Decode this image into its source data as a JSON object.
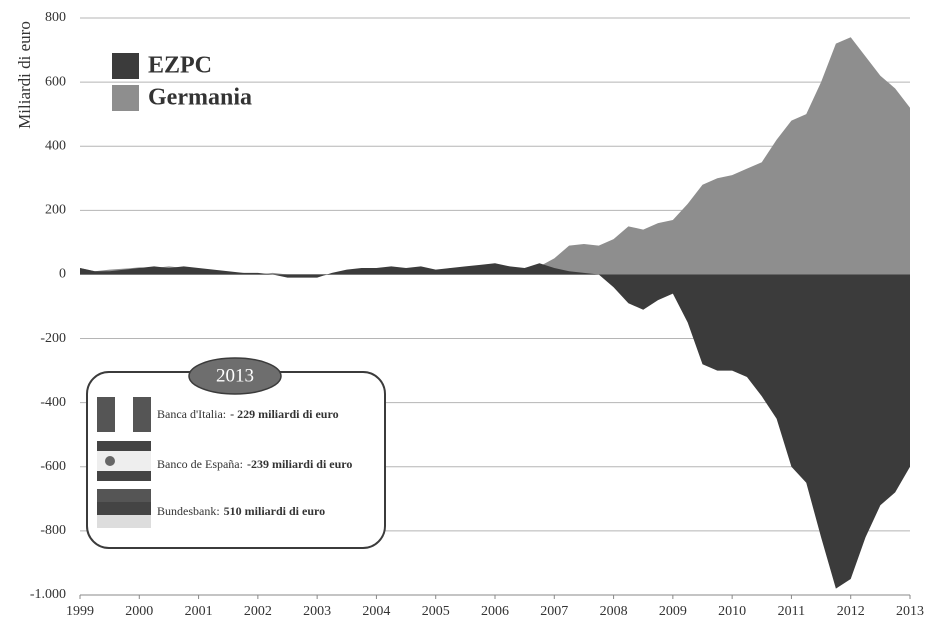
{
  "chart_data": {
    "type": "area",
    "y_label": "Miliardi di euro",
    "x": [
      1999,
      1999.25,
      1999.5,
      1999.75,
      2000,
      2000.25,
      2000.5,
      2000.75,
      2001,
      2001.25,
      2001.5,
      2001.75,
      2002,
      2002.25,
      2002.5,
      2002.75,
      2003,
      2003.25,
      2003.5,
      2003.75,
      2004,
      2004.25,
      2004.5,
      2004.75,
      2005,
      2005.25,
      2005.5,
      2005.75,
      2006,
      2006.25,
      2006.5,
      2006.75,
      2007,
      2007.25,
      2007.5,
      2007.75,
      2008,
      2008.25,
      2008.5,
      2008.75,
      2009,
      2009.25,
      2009.5,
      2009.75,
      2010,
      2010.25,
      2010.5,
      2010.75,
      2011,
      2011.25,
      2011.5,
      2011.75,
      2012,
      2012.25,
      2012.5,
      2012.75,
      2013
    ],
    "series": [
      {
        "name": "Germania",
        "color": "#8e8e8e",
        "values": [
          20,
          10,
          15,
          18,
          22,
          20,
          25,
          20,
          15,
          10,
          5,
          5,
          0,
          5,
          0,
          -5,
          -5,
          0,
          5,
          10,
          15,
          20,
          15,
          20,
          10,
          20,
          15,
          20,
          25,
          20,
          20,
          25,
          50,
          90,
          95,
          90,
          110,
          150,
          140,
          160,
          170,
          220,
          280,
          300,
          310,
          330,
          350,
          420,
          480,
          500,
          600,
          720,
          740,
          680,
          620,
          580,
          520
        ]
      },
      {
        "name": "EZPC",
        "color": "#3b3b3b",
        "values": [
          20,
          10,
          10,
          15,
          20,
          25,
          20,
          25,
          20,
          15,
          10,
          5,
          5,
          0,
          -10,
          -10,
          -10,
          5,
          15,
          20,
          20,
          25,
          20,
          25,
          15,
          20,
          25,
          30,
          35,
          25,
          20,
          35,
          20,
          10,
          5,
          0,
          -40,
          -90,
          -110,
          -80,
          -60,
          -150,
          -280,
          -300,
          -300,
          -320,
          -380,
          -450,
          -600,
          -650,
          -820,
          -980,
          -950,
          -820,
          -720,
          -680,
          -600
        ]
      }
    ],
    "xlim": [
      1999,
      2013
    ],
    "xticks": [
      1999,
      2000,
      2001,
      2002,
      2003,
      2004,
      2005,
      2006,
      2007,
      2008,
      2009,
      2010,
      2011,
      2012,
      2013
    ],
    "ylim": [
      -1000,
      800
    ],
    "yticks": [
      800,
      600,
      400,
      200,
      0,
      -200,
      -400,
      -600,
      -800,
      {
        "value": -1000,
        "label": "-1.000"
      }
    ],
    "grid": true,
    "legend_order": [
      1,
      0
    ],
    "inset": {
      "title": "2013",
      "items": [
        {
          "bank": "Banca d'Italia:",
          "amount": "- 229 miliardi di euro"
        },
        {
          "bank": "Banco de España:",
          "amount": "-239 miliardi di euro"
        },
        {
          "bank": "Bundesbank:",
          "amount": "510 miliardi di euro"
        }
      ]
    }
  }
}
